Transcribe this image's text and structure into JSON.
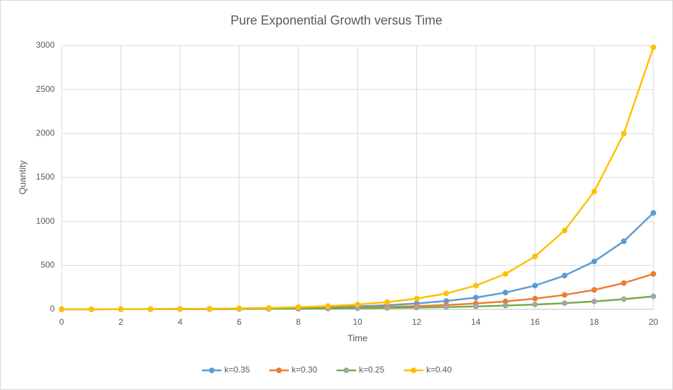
{
  "chart_data": {
    "type": "line",
    "title": "Pure Exponential Growth versus Time",
    "x_label": "Time",
    "y_label": "Quantity",
    "x": [
      0,
      1,
      2,
      3,
      4,
      5,
      6,
      7,
      8,
      9,
      10,
      11,
      12,
      13,
      14,
      15,
      16,
      17,
      18,
      19,
      20
    ],
    "series": [
      {
        "name": "k=0.35",
        "color": "#5b9bd5",
        "values": [
          1,
          1,
          2,
          3,
          4,
          6,
          8,
          12,
          16,
          23,
          33,
          47,
          67,
          95,
          134,
          191,
          270,
          384,
          545,
          774,
          1097
        ]
      },
      {
        "name": "k=0.30",
        "color": "#ed7d31",
        "values": [
          1,
          1,
          2,
          2,
          3,
          4,
          6,
          8,
          11,
          15,
          20,
          27,
          37,
          49,
          67,
          90,
          122,
          164,
          221,
          299,
          403
        ]
      },
      {
        "name": "k=0.25",
        "color": "#70ad47",
        "marker_color": "#a5a5a5",
        "values": [
          1,
          1,
          2,
          2,
          3,
          3,
          4,
          6,
          7,
          9,
          12,
          16,
          20,
          26,
          33,
          43,
          55,
          70,
          90,
          116,
          148
        ]
      },
      {
        "name": "k=0.40",
        "color": "#ffc000",
        "values": [
          1,
          1,
          2,
          3,
          5,
          7,
          11,
          16,
          25,
          37,
          55,
          82,
          122,
          181,
          270,
          403,
          602,
          898,
          1339,
          1998,
          2981
        ]
      }
    ],
    "xlim": [
      0,
      20
    ],
    "xticks": [
      0,
      2,
      4,
      6,
      8,
      10,
      12,
      14,
      16,
      18,
      20
    ],
    "ylim": [
      0,
      3000
    ],
    "yticks": [
      0,
      500,
      1000,
      1500,
      2000,
      2500,
      3000
    ],
    "grid": true,
    "legend": "bottom"
  }
}
